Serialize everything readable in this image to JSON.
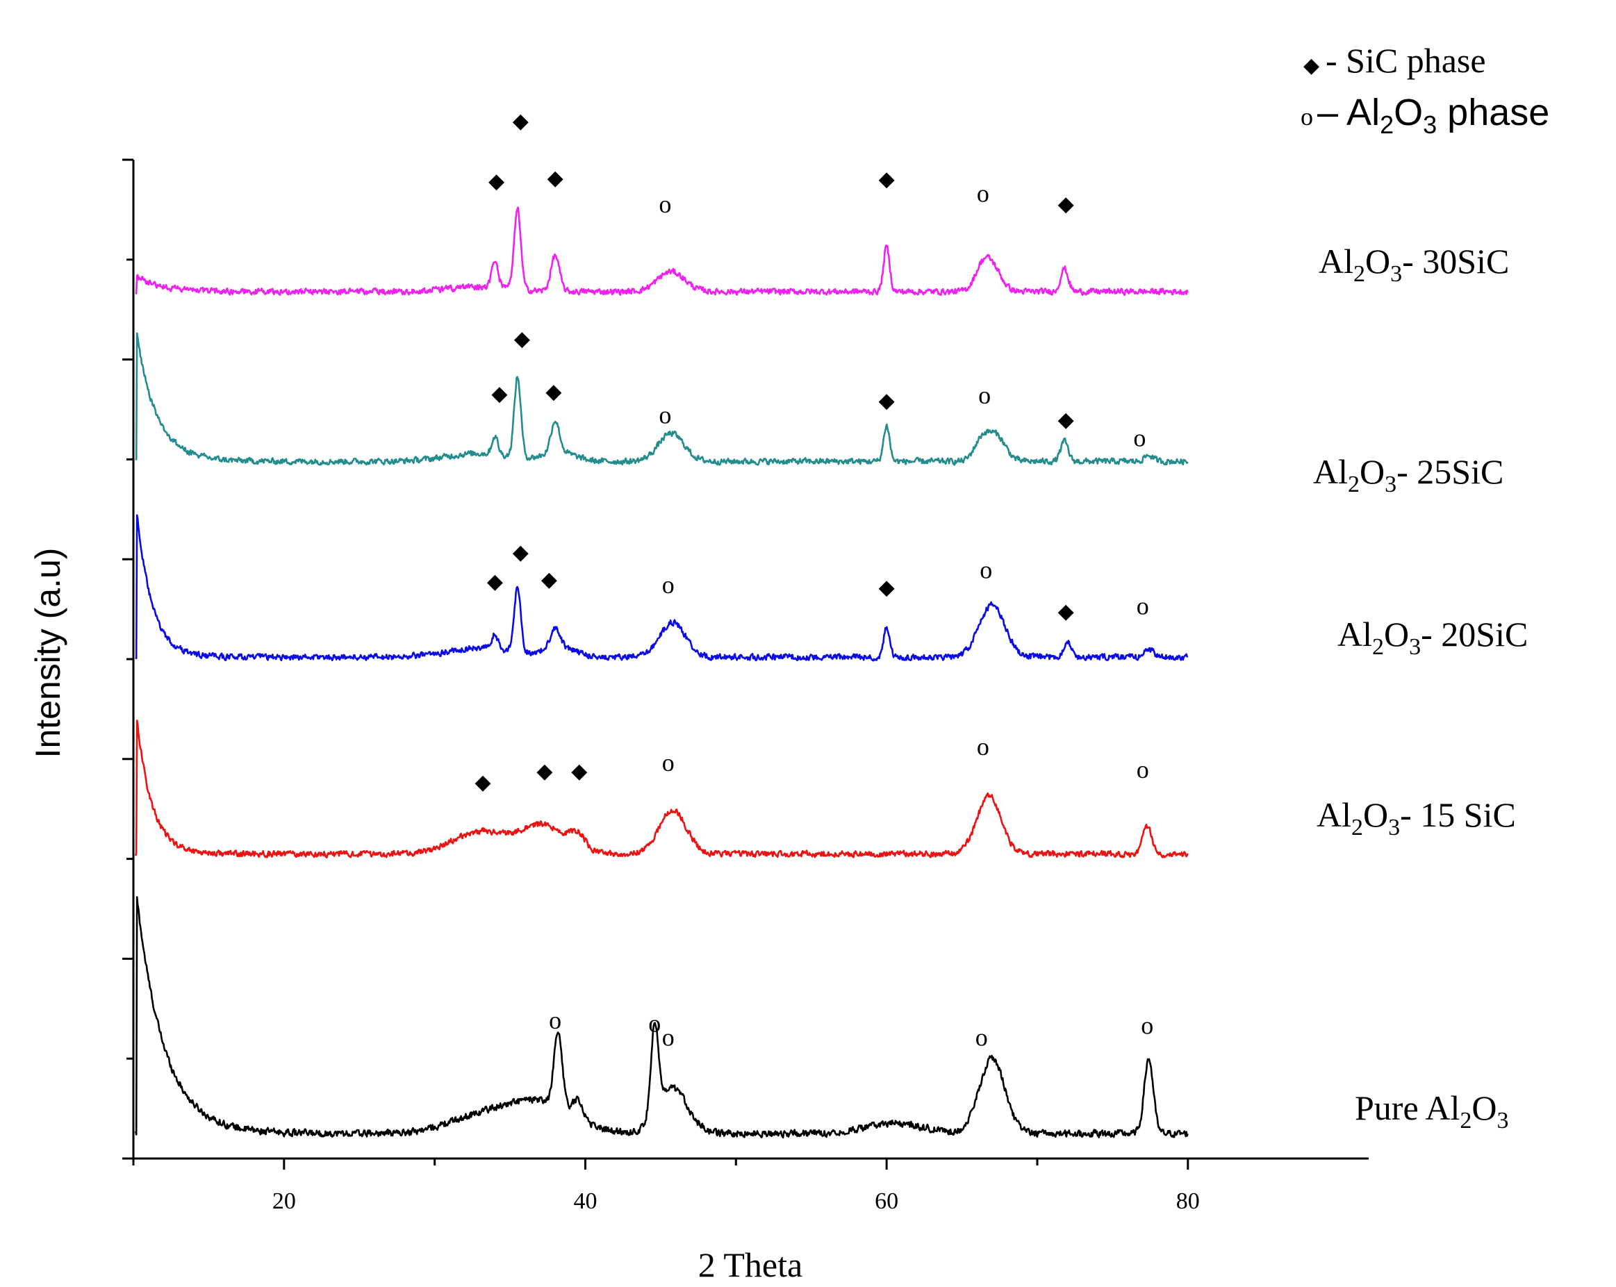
{
  "chart_data": {
    "type": "line",
    "xlabel": "2 Theta",
    "ylabel": "Intensity (a.u)",
    "xlim": [
      10,
      92
    ],
    "x_ticks": [
      20,
      40,
      60,
      80
    ],
    "x_tick_labels": [
      "20",
      "40",
      "60",
      "80"
    ],
    "ylim": [
      0,
      100
    ],
    "y_tick_labels_shown": false,
    "legend": {
      "position": "top-right",
      "entries": [
        {
          "symbol": "◆",
          "symbol_name": "diamond",
          "prefix": " - ",
          "text": "SiC phase"
        },
        {
          "symbol": "o",
          "symbol_name": "circle",
          "prefix": " – ",
          "parts": [
            "Al",
            "2",
            "O",
            "3",
            " phase"
          ]
        }
      ]
    },
    "series": [
      {
        "name": "Pure Al2O3",
        "label_parts": [
          "Pure Al",
          "2",
          "O",
          "3",
          ""
        ],
        "color": "#000000",
        "baseline": 2.5,
        "noise": 0.35,
        "decay": {
          "amp": 24,
          "rate": 0.55,
          "x0": 10.2
        },
        "peaks": [
          [
            33,
            1.6,
            2.2
          ],
          [
            37,
            3.0,
            2.2
          ],
          [
            38.2,
            7.5,
            0.28
          ],
          [
            39.5,
            1.8,
            0.35
          ],
          [
            44.6,
            9.0,
            0.25
          ],
          [
            45.8,
            4.5,
            1.0
          ],
          [
            60.5,
            1.0,
            2.0
          ],
          [
            67,
            7.5,
            0.85
          ],
          [
            77.4,
            7.5,
            0.3
          ]
        ]
      },
      {
        "name": "Al2O3- 15 SiC",
        "label_parts": [
          "Al",
          "2",
          "O",
          "3",
          "- 15 SiC"
        ],
        "color": "#ee1111",
        "baseline": 30.5,
        "noise": 0.3,
        "decay": {
          "amp": 14,
          "rate": 1.0,
          "x0": 10.2
        },
        "peaks": [
          [
            33,
            2.2,
            1.8
          ],
          [
            37.2,
            2.8,
            1.5
          ],
          [
            39.5,
            1.4,
            0.5
          ],
          [
            45.8,
            4.4,
            0.9
          ],
          [
            66.8,
            5.8,
            0.8
          ],
          [
            77.3,
            2.8,
            0.3
          ]
        ]
      },
      {
        "name": "Al2O3- 20SiC",
        "label_parts": [
          "Al",
          "2",
          "O",
          "3",
          "- 20SiC"
        ],
        "color": "#0a0ae8",
        "baseline": 50.2,
        "noise": 0.3,
        "decay": {
          "amp": 15,
          "rate": 1.0,
          "x0": 10.2
        },
        "peaks": [
          [
            33,
            0.9,
            2.2
          ],
          [
            34,
            1.5,
            0.2
          ],
          [
            35.5,
            6.5,
            0.22
          ],
          [
            38,
            2.0,
            0.3
          ],
          [
            38.3,
            1.0,
            1.0
          ],
          [
            45.8,
            3.5,
            0.85
          ],
          [
            60,
            3.0,
            0.2
          ],
          [
            67,
            5.2,
            0.85
          ],
          [
            72,
            1.6,
            0.25
          ],
          [
            77.4,
            0.8,
            0.3
          ]
        ]
      },
      {
        "name": "Al2O3- 25SiC",
        "label_parts": [
          "Al",
          "2",
          "O",
          "3",
          "- 25SiC"
        ],
        "color": "#238c8c",
        "baseline": 69.8,
        "noise": 0.3,
        "decay": {
          "amp": 13,
          "rate": 0.75,
          "x0": 10.2
        },
        "peaks": [
          [
            33,
            0.8,
            2.2
          ],
          [
            34,
            1.8,
            0.2
          ],
          [
            35.5,
            8.0,
            0.22
          ],
          [
            38,
            3.2,
            0.28
          ],
          [
            38.3,
            0.9,
            1.0
          ],
          [
            45.7,
            2.8,
            0.85
          ],
          [
            60,
            3.6,
            0.2
          ],
          [
            66.3,
            2.0,
            0.5
          ],
          [
            67.3,
            2.5,
            0.6
          ],
          [
            71.8,
            2.0,
            0.25
          ],
          [
            77.4,
            0.6,
            0.3
          ]
        ]
      },
      {
        "name": "Al2O3- 30SiC",
        "label_parts": [
          "Al",
          "2",
          "O",
          "3",
          "- 30SiC"
        ],
        "color": "#f020f0",
        "baseline": 86.8,
        "noise": 0.3,
        "decay": {
          "amp": 1.5,
          "rate": 0.6,
          "x0": 10.2
        },
        "peaks": [
          [
            33,
            0.5,
            2.0
          ],
          [
            34,
            2.5,
            0.22
          ],
          [
            35.5,
            8.0,
            0.22
          ],
          [
            38,
            3.6,
            0.28
          ],
          [
            45.7,
            2.0,
            0.9
          ],
          [
            60,
            4.5,
            0.2
          ],
          [
            66.3,
            1.8,
            0.5
          ],
          [
            67,
            2.4,
            0.6
          ],
          [
            71.8,
            2.3,
            0.25
          ]
        ]
      }
    ],
    "annotations": [
      {
        "symbol": "o",
        "x": 38.0,
        "y": 13.0
      },
      {
        "symbol": "o",
        "x": 45.5,
        "y": 11.3
      },
      {
        "symbol": "o",
        "x": 44.6,
        "y": 12.7
      },
      {
        "symbol": "o",
        "x": 66.3,
        "y": 11.3
      },
      {
        "symbol": "o",
        "x": 77.3,
        "y": 12.5
      },
      {
        "symbol": "◆",
        "x": 33.2,
        "y": 37.0
      },
      {
        "symbol": "◆",
        "x": 37.3,
        "y": 38.1
      },
      {
        "symbol": "◆",
        "x": 39.6,
        "y": 38.1
      },
      {
        "symbol": "o",
        "x": 45.5,
        "y": 38.8
      },
      {
        "symbol": "o",
        "x": 66.4,
        "y": 40.4
      },
      {
        "symbol": "o",
        "x": 77.0,
        "y": 38.1
      },
      {
        "symbol": "◆",
        "x": 34.0,
        "y": 57.1
      },
      {
        "symbol": "◆",
        "x": 35.7,
        "y": 60.0
      },
      {
        "symbol": "◆",
        "x": 37.6,
        "y": 57.3
      },
      {
        "symbol": "o",
        "x": 45.5,
        "y": 56.6
      },
      {
        "symbol": "◆",
        "x": 60.0,
        "y": 56.5
      },
      {
        "symbol": "o",
        "x": 66.6,
        "y": 58.1
      },
      {
        "symbol": "◆",
        "x": 71.9,
        "y": 54.1
      },
      {
        "symbol": "o",
        "x": 77.0,
        "y": 54.5
      },
      {
        "symbol": "◆",
        "x": 34.3,
        "y": 75.9
      },
      {
        "symbol": "◆",
        "x": 35.8,
        "y": 81.4
      },
      {
        "symbol": "◆",
        "x": 37.9,
        "y": 76.1
      },
      {
        "symbol": "o",
        "x": 45.3,
        "y": 73.6
      },
      {
        "symbol": "◆",
        "x": 60.0,
        "y": 75.2
      },
      {
        "symbol": "o",
        "x": 66.5,
        "y": 75.6
      },
      {
        "symbol": "◆",
        "x": 71.9,
        "y": 73.3
      },
      {
        "symbol": "o",
        "x": 76.8,
        "y": 71.3
      },
      {
        "symbol": "◆",
        "x": 34.1,
        "y": 97.2
      },
      {
        "symbol": "◆",
        "x": 35.7,
        "y": 103.2
      },
      {
        "symbol": "◆",
        "x": 38.0,
        "y": 97.5
      },
      {
        "symbol": "o",
        "x": 45.3,
        "y": 94.7
      },
      {
        "symbol": "◆",
        "x": 60.0,
        "y": 97.4
      },
      {
        "symbol": "o",
        "x": 66.4,
        "y": 95.8
      },
      {
        "symbol": "◆",
        "x": 71.9,
        "y": 94.9
      }
    ]
  }
}
